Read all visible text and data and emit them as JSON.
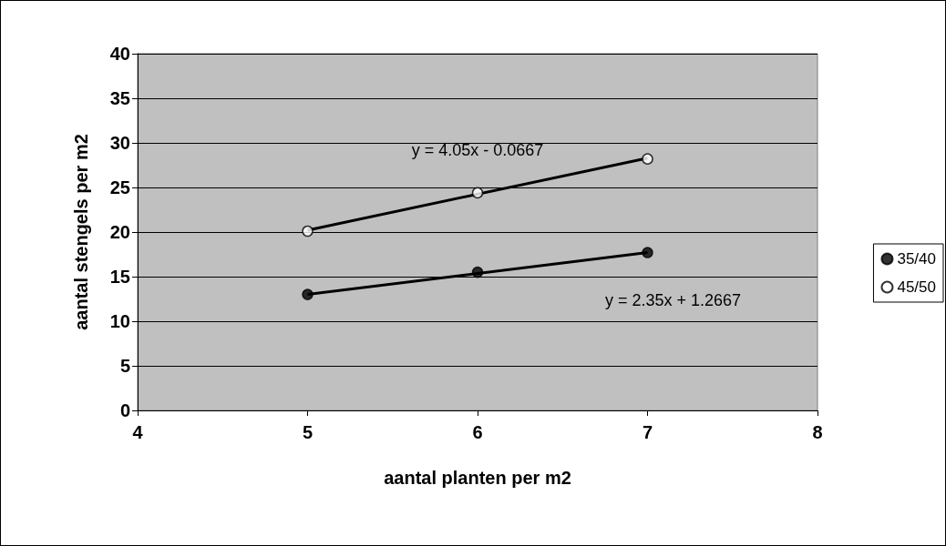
{
  "chart_data": {
    "type": "scatter",
    "xlabel": "aantal planten per m2",
    "ylabel": "aantal stengels per m2",
    "xlim": [
      4,
      8
    ],
    "xticks": [
      4,
      5,
      6,
      7,
      8
    ],
    "ylim": [
      0,
      40
    ],
    "yticks": [
      0,
      5,
      10,
      15,
      20,
      25,
      30,
      35,
      40
    ],
    "grid": "y",
    "legend": "right",
    "marker": "circle",
    "series": [
      {
        "name": "35/40",
        "color": "#000000",
        "x": [
          5,
          6,
          7
        ],
        "values": [
          13.0,
          15.5,
          17.7
        ]
      },
      {
        "name": "45/50",
        "color": "#ffffff",
        "x": [
          5,
          6,
          7
        ],
        "values": [
          20.1,
          24.4,
          28.2
        ]
      },
      {
        "type": "line",
        "color": "#000000",
        "marker": "none",
        "x": [
          5,
          7
        ],
        "values": [
          13.0,
          17.7
        ]
      },
      {
        "type": "line",
        "color": "#000000",
        "marker": "none",
        "x": [
          5,
          7
        ],
        "values": [
          20.2,
          28.3
        ]
      }
    ],
    "annotations": [
      "y = 4.05x - 0.0667",
      "y = 2.35x + 1.2667"
    ]
  }
}
